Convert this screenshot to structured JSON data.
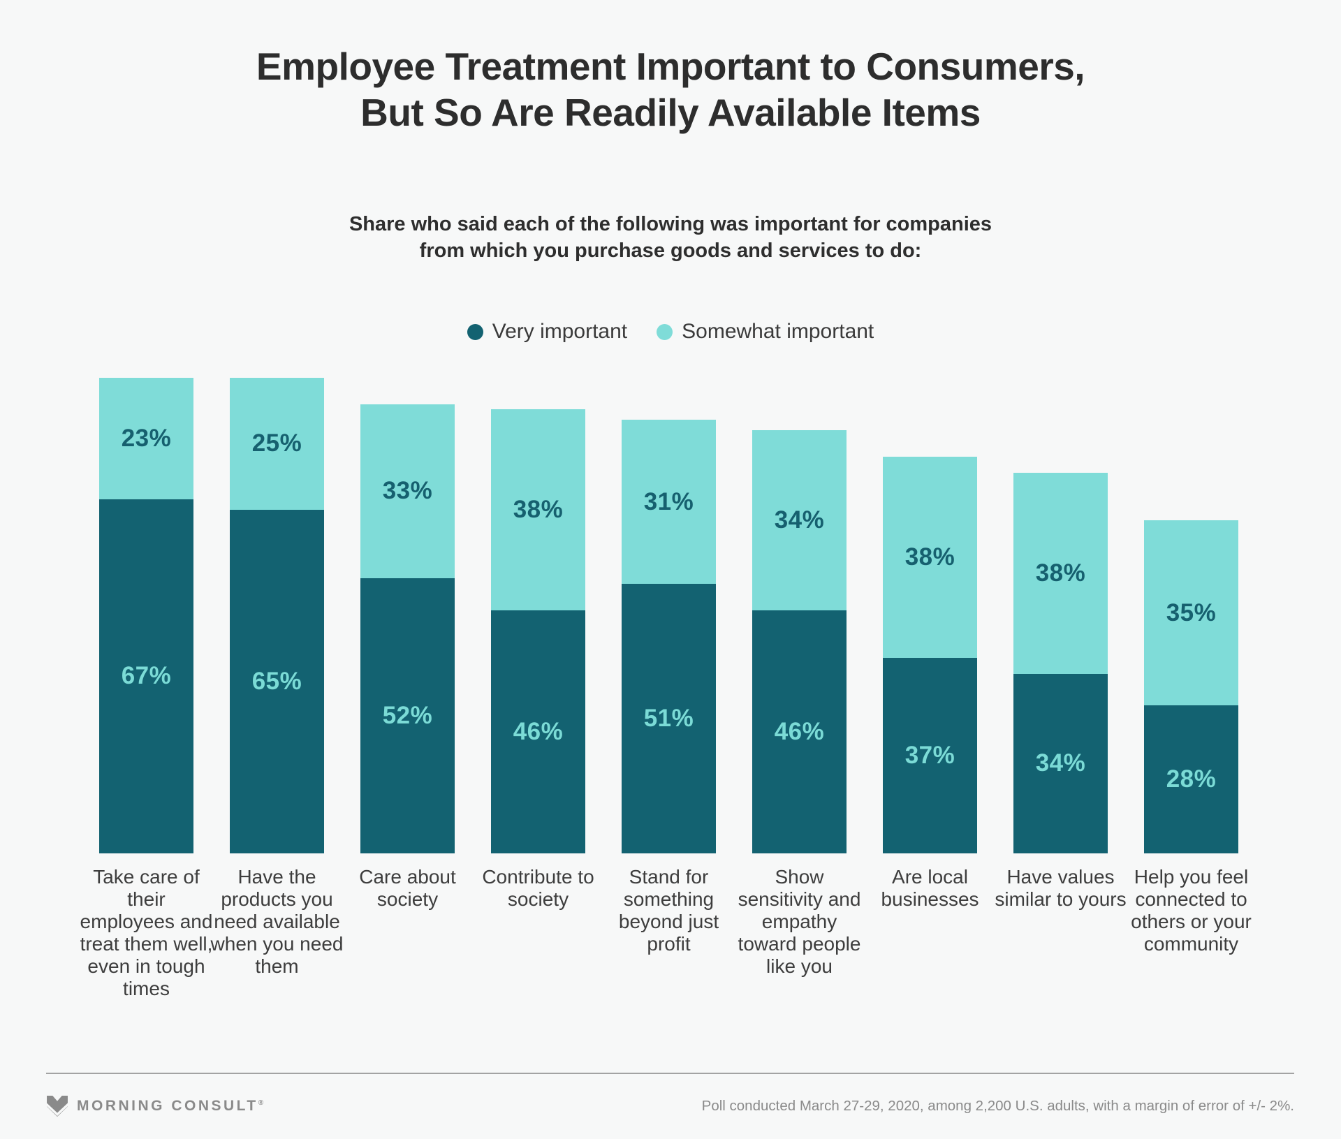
{
  "title": {
    "line1": "Employee Treatment Important to Consumers,",
    "line2": "But So Are Readily Available Items"
  },
  "subtitle": {
    "line1": "Share who said each of the following was important for companies",
    "line2": "from which you purchase goods and services to do:"
  },
  "legend": {
    "items": [
      {
        "label": "Very important",
        "color": "#136271"
      },
      {
        "label": "Somewhat important",
        "color": "#7fdcd8"
      }
    ]
  },
  "chart_data": {
    "type": "bar",
    "stacked": true,
    "grid": false,
    "legend_position": "top",
    "value_suffix": "%",
    "ylim": [
      0,
      100
    ],
    "categories": [
      "Take care of their employees and treat them well, even in tough times",
      "Have the products you need available when you need them",
      "Care about society",
      "Contribute to society",
      "Stand for something beyond just profit",
      "Show sensitivity and empathy toward people like you",
      "Are local businesses",
      "Have values similar to yours",
      "Help you feel connected to others or your community"
    ],
    "series": [
      {
        "name": "Very important",
        "color": "#136271",
        "label_color": "#7bdbd6",
        "values": [
          67,
          65,
          52,
          46,
          51,
          46,
          37,
          34,
          28
        ]
      },
      {
        "name": "Somewhat important",
        "color": "#7fdcd8",
        "label_color": "#16606f",
        "values": [
          23,
          25,
          33,
          38,
          31,
          34,
          38,
          38,
          35
        ]
      }
    ]
  },
  "footer": {
    "brand": "MORNING CONSULT",
    "registered": "®",
    "note": "Poll conducted March 27-29, 2020, among 2,200 U.S. adults, with a margin of error of +/- 2%."
  },
  "colors": {
    "background": "#f7f8f8",
    "title_text": "#2d2d2d",
    "category_text": "#3d3d3d",
    "footer_gray": "#8a8a8a",
    "divider_gray": "#a3a3a3"
  }
}
